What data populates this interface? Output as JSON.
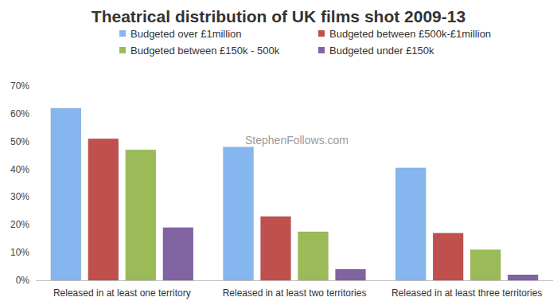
{
  "chart_data": {
    "type": "bar",
    "title": "Theatrical distribution of UK films shot 2009-13",
    "categories": [
      "Released in at least one territory",
      "Released in at least two territories",
      "Released in at least three territories"
    ],
    "series": [
      {
        "name": "Budgeted over £1million",
        "color": "#86b6ef",
        "values": [
          62,
          48,
          40.5
        ]
      },
      {
        "name": "Budgeted between £500k-£1million",
        "color": "#c0504d",
        "values": [
          51,
          23,
          17
        ]
      },
      {
        "name": "Budgeted between £150k - 500k",
        "color": "#9bbb59",
        "values": [
          47,
          17.5,
          11
        ]
      },
      {
        "name": "Budgeted under £150k",
        "color": "#8064a2",
        "values": [
          19,
          4,
          2
        ]
      }
    ],
    "ylim": [
      0,
      70
    ],
    "yticks": [
      {
        "value": 0,
        "label": "0%"
      },
      {
        "value": 10,
        "label": "10%"
      },
      {
        "value": 20,
        "label": "20%"
      },
      {
        "value": 30,
        "label": "30%"
      },
      {
        "value": 40,
        "label": "40%"
      },
      {
        "value": 50,
        "label": "50%"
      },
      {
        "value": 60,
        "label": "60%"
      },
      {
        "value": 70,
        "label": "70%"
      }
    ],
    "grid": false,
    "legend": "top",
    "annotations": [
      "StephenFollows.com"
    ]
  }
}
